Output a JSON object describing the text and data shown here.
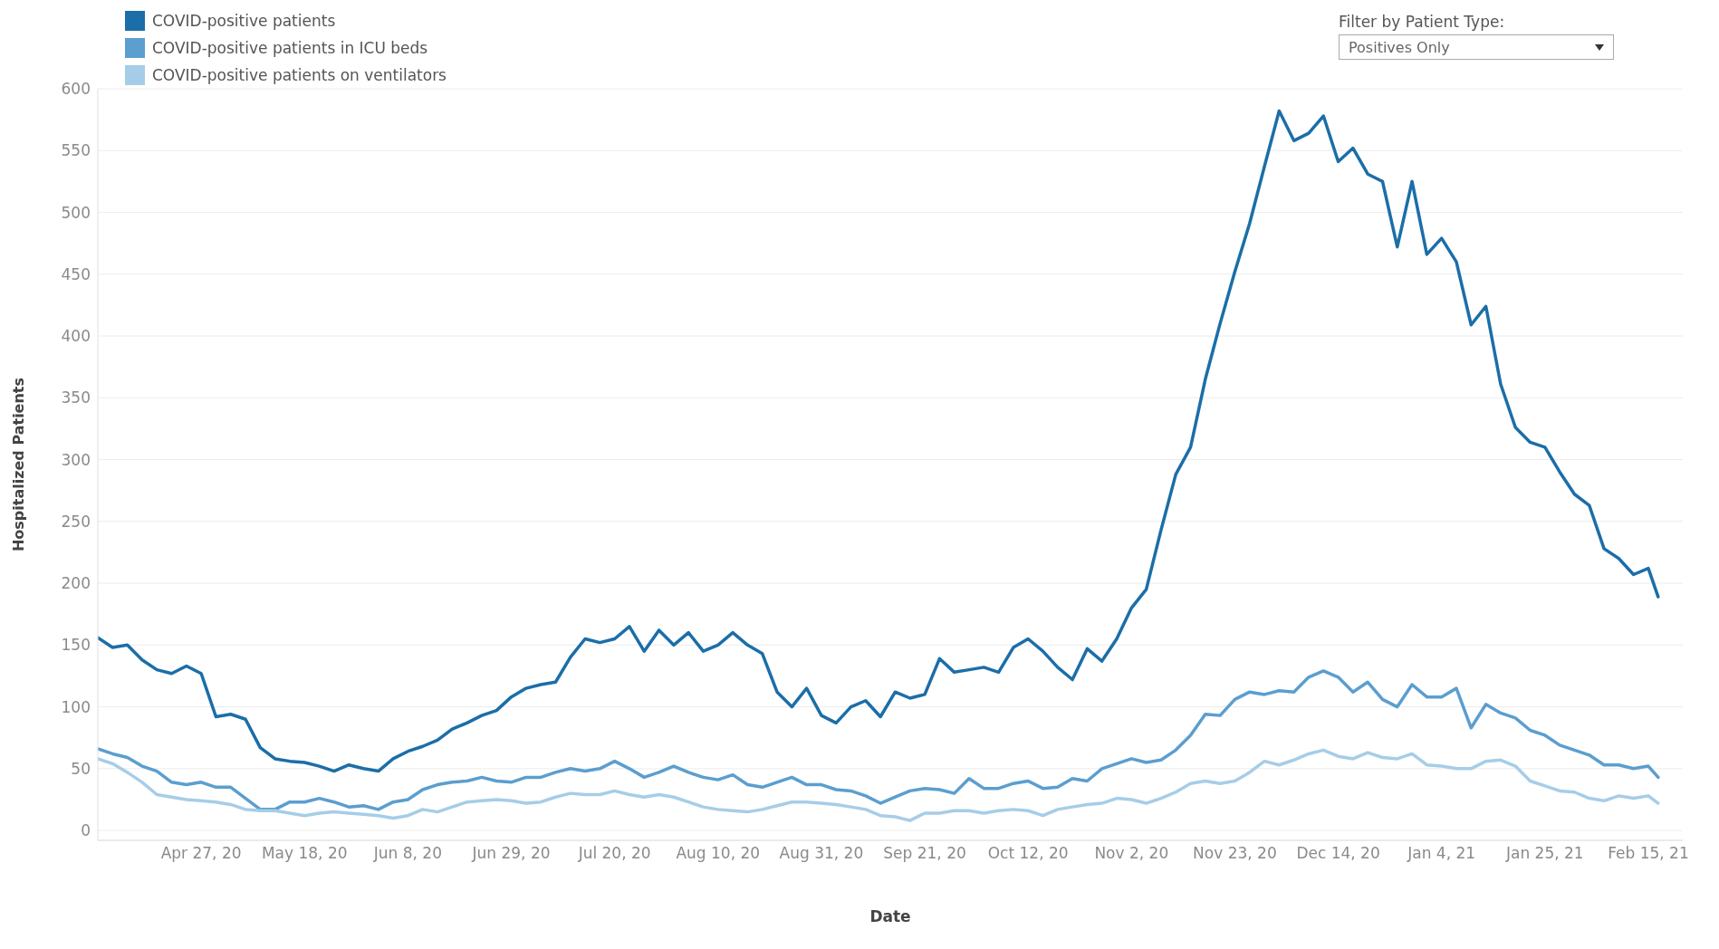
{
  "chart_data": {
    "type": "line",
    "xlabel": "Date",
    "ylabel": "Hospitalized Patients",
    "annotations": [
      "Filter by Patient Type:",
      "Positives Only"
    ],
    "x": [
      "2020-04-06",
      "2020-04-09",
      "2020-04-12",
      "2020-04-15",
      "2020-04-18",
      "2020-04-21",
      "2020-04-24",
      "2020-04-27",
      "2020-04-30",
      "2020-05-03",
      "2020-05-06",
      "2020-05-09",
      "2020-05-12",
      "2020-05-15",
      "2020-05-18",
      "2020-05-21",
      "2020-05-24",
      "2020-05-27",
      "2020-05-30",
      "2020-06-02",
      "2020-06-05",
      "2020-06-08",
      "2020-06-11",
      "2020-06-14",
      "2020-06-17",
      "2020-06-20",
      "2020-06-23",
      "2020-06-26",
      "2020-06-29",
      "2020-07-02",
      "2020-07-05",
      "2020-07-08",
      "2020-07-11",
      "2020-07-14",
      "2020-07-17",
      "2020-07-20",
      "2020-07-23",
      "2020-07-26",
      "2020-07-29",
      "2020-08-01",
      "2020-08-04",
      "2020-08-07",
      "2020-08-10",
      "2020-08-13",
      "2020-08-16",
      "2020-08-19",
      "2020-08-22",
      "2020-08-25",
      "2020-08-28",
      "2020-08-31",
      "2020-09-03",
      "2020-09-06",
      "2020-09-09",
      "2020-09-12",
      "2020-09-15",
      "2020-09-18",
      "2020-09-21",
      "2020-09-24",
      "2020-09-27",
      "2020-09-30",
      "2020-10-03",
      "2020-10-06",
      "2020-10-09",
      "2020-10-12",
      "2020-10-15",
      "2020-10-18",
      "2020-10-21",
      "2020-10-24",
      "2020-10-27",
      "2020-10-30",
      "2020-11-02",
      "2020-11-05",
      "2020-11-08",
      "2020-11-11",
      "2020-11-14",
      "2020-11-17",
      "2020-11-20",
      "2020-11-23",
      "2020-11-26",
      "2020-11-29",
      "2020-12-02",
      "2020-12-05",
      "2020-12-08",
      "2020-12-11",
      "2020-12-14",
      "2020-12-17",
      "2020-12-20",
      "2020-12-23",
      "2020-12-26",
      "2020-12-29",
      "2021-01-01",
      "2021-01-04",
      "2021-01-07",
      "2021-01-10",
      "2021-01-13",
      "2021-01-16",
      "2021-01-19",
      "2021-01-22",
      "2021-01-25",
      "2021-01-28",
      "2021-01-31",
      "2021-02-03",
      "2021-02-06",
      "2021-02-09",
      "2021-02-12",
      "2021-02-15",
      "2021-02-17"
    ],
    "series": [
      {
        "name": "COVID-positive patients",
        "color": "#1b6ea8",
        "values": [
          156,
          148,
          150,
          138,
          130,
          127,
          133,
          127,
          92,
          94,
          90,
          67,
          58,
          56,
          55,
          52,
          48,
          53,
          50,
          48,
          58,
          64,
          68,
          73,
          82,
          87,
          93,
          97,
          108,
          115,
          118,
          120,
          140,
          155,
          152,
          155,
          165,
          145,
          162,
          150,
          160,
          145,
          150,
          160,
          150,
          143,
          112,
          100,
          115,
          93,
          87,
          100,
          105,
          92,
          112,
          107,
          110,
          139,
          128,
          130,
          132,
          128,
          148,
          155,
          145,
          132,
          122,
          147,
          137,
          155,
          180,
          195,
          243,
          288,
          310,
          365,
          410,
          452,
          491,
          537,
          582,
          558,
          564,
          578,
          541,
          552,
          531,
          525,
          472,
          525,
          466,
          479,
          460,
          409,
          424,
          361,
          326,
          314,
          310,
          290,
          272,
          263,
          228,
          220,
          207,
          212,
          189
        ]
      },
      {
        "name": "COVID-positive patients in ICU beds",
        "color": "#5b9ecf",
        "values": [
          66,
          62,
          59,
          52,
          48,
          39,
          37,
          39,
          35,
          35,
          26,
          17,
          17,
          23,
          23,
          26,
          23,
          19,
          20,
          17,
          23,
          25,
          33,
          37,
          39,
          40,
          43,
          40,
          39,
          43,
          43,
          47,
          50,
          48,
          50,
          56,
          50,
          43,
          47,
          52,
          47,
          43,
          41,
          45,
          37,
          35,
          39,
          43,
          37,
          37,
          33,
          32,
          28,
          22,
          27,
          32,
          34,
          33,
          30,
          42,
          34,
          34,
          38,
          40,
          34,
          35,
          42,
          40,
          50,
          54,
          58,
          55,
          57,
          65,
          77,
          94,
          93,
          106,
          112,
          110,
          113,
          112,
          124,
          129,
          124,
          112,
          120,
          106,
          100,
          118,
          108,
          108,
          115,
          83,
          102,
          95,
          91,
          81,
          77,
          69,
          65,
          61,
          53,
          53,
          50,
          52,
          43
        ]
      },
      {
        "name": "COVID-positive patients on ventilators",
        "color": "#a6cde8",
        "values": [
          58,
          54,
          47,
          39,
          29,
          27,
          25,
          24,
          23,
          21,
          17,
          16,
          16,
          14,
          12,
          14,
          15,
          14,
          13,
          12,
          10,
          12,
          17,
          15,
          19,
          23,
          24,
          25,
          24,
          22,
          23,
          27,
          30,
          29,
          29,
          32,
          29,
          27,
          29,
          27,
          23,
          19,
          17,
          16,
          15,
          17,
          20,
          23,
          23,
          22,
          21,
          19,
          17,
          12,
          11,
          8,
          14,
          14,
          16,
          16,
          14,
          16,
          17,
          16,
          12,
          17,
          19,
          21,
          22,
          26,
          25,
          22,
          26,
          31,
          38,
          40,
          38,
          40,
          47,
          56,
          53,
          57,
          62,
          65,
          60,
          58,
          63,
          59,
          58,
          62,
          53,
          52,
          50,
          50,
          56,
          57,
          52,
          40,
          36,
          32,
          31,
          26,
          24,
          28,
          26,
          28,
          22
        ]
      }
    ],
    "xlim": [
      "2020-04-06",
      "2021-02-22"
    ],
    "xticks": [
      {
        "value": "2020-04-27",
        "label": "Apr 27, 20"
      },
      {
        "value": "2020-05-18",
        "label": "May 18, 20"
      },
      {
        "value": "2020-06-08",
        "label": "Jun 8, 20"
      },
      {
        "value": "2020-06-29",
        "label": "Jun 29, 20"
      },
      {
        "value": "2020-07-20",
        "label": "Jul 20, 20"
      },
      {
        "value": "2020-08-10",
        "label": "Aug 10, 20"
      },
      {
        "value": "2020-08-31",
        "label": "Aug 31, 20"
      },
      {
        "value": "2020-09-21",
        "label": "Sep 21, 20"
      },
      {
        "value": "2020-10-12",
        "label": "Oct 12, 20"
      },
      {
        "value": "2020-11-02",
        "label": "Nov 2, 20"
      },
      {
        "value": "2020-11-23",
        "label": "Nov 23, 20"
      },
      {
        "value": "2020-12-14",
        "label": "Dec 14, 20"
      },
      {
        "value": "2021-01-04",
        "label": "Jan 4, 21"
      },
      {
        "value": "2021-01-25",
        "label": "Jan 25, 21"
      },
      {
        "value": "2021-02-15",
        "label": "Feb 15, 21"
      }
    ],
    "ylim": [
      -8,
      600
    ],
    "yticks": [
      0,
      50,
      100,
      150,
      200,
      250,
      300,
      350,
      400,
      450,
      500,
      550,
      600
    ],
    "grid": "y",
    "legend": "top left",
    "line_style": "solid"
  }
}
